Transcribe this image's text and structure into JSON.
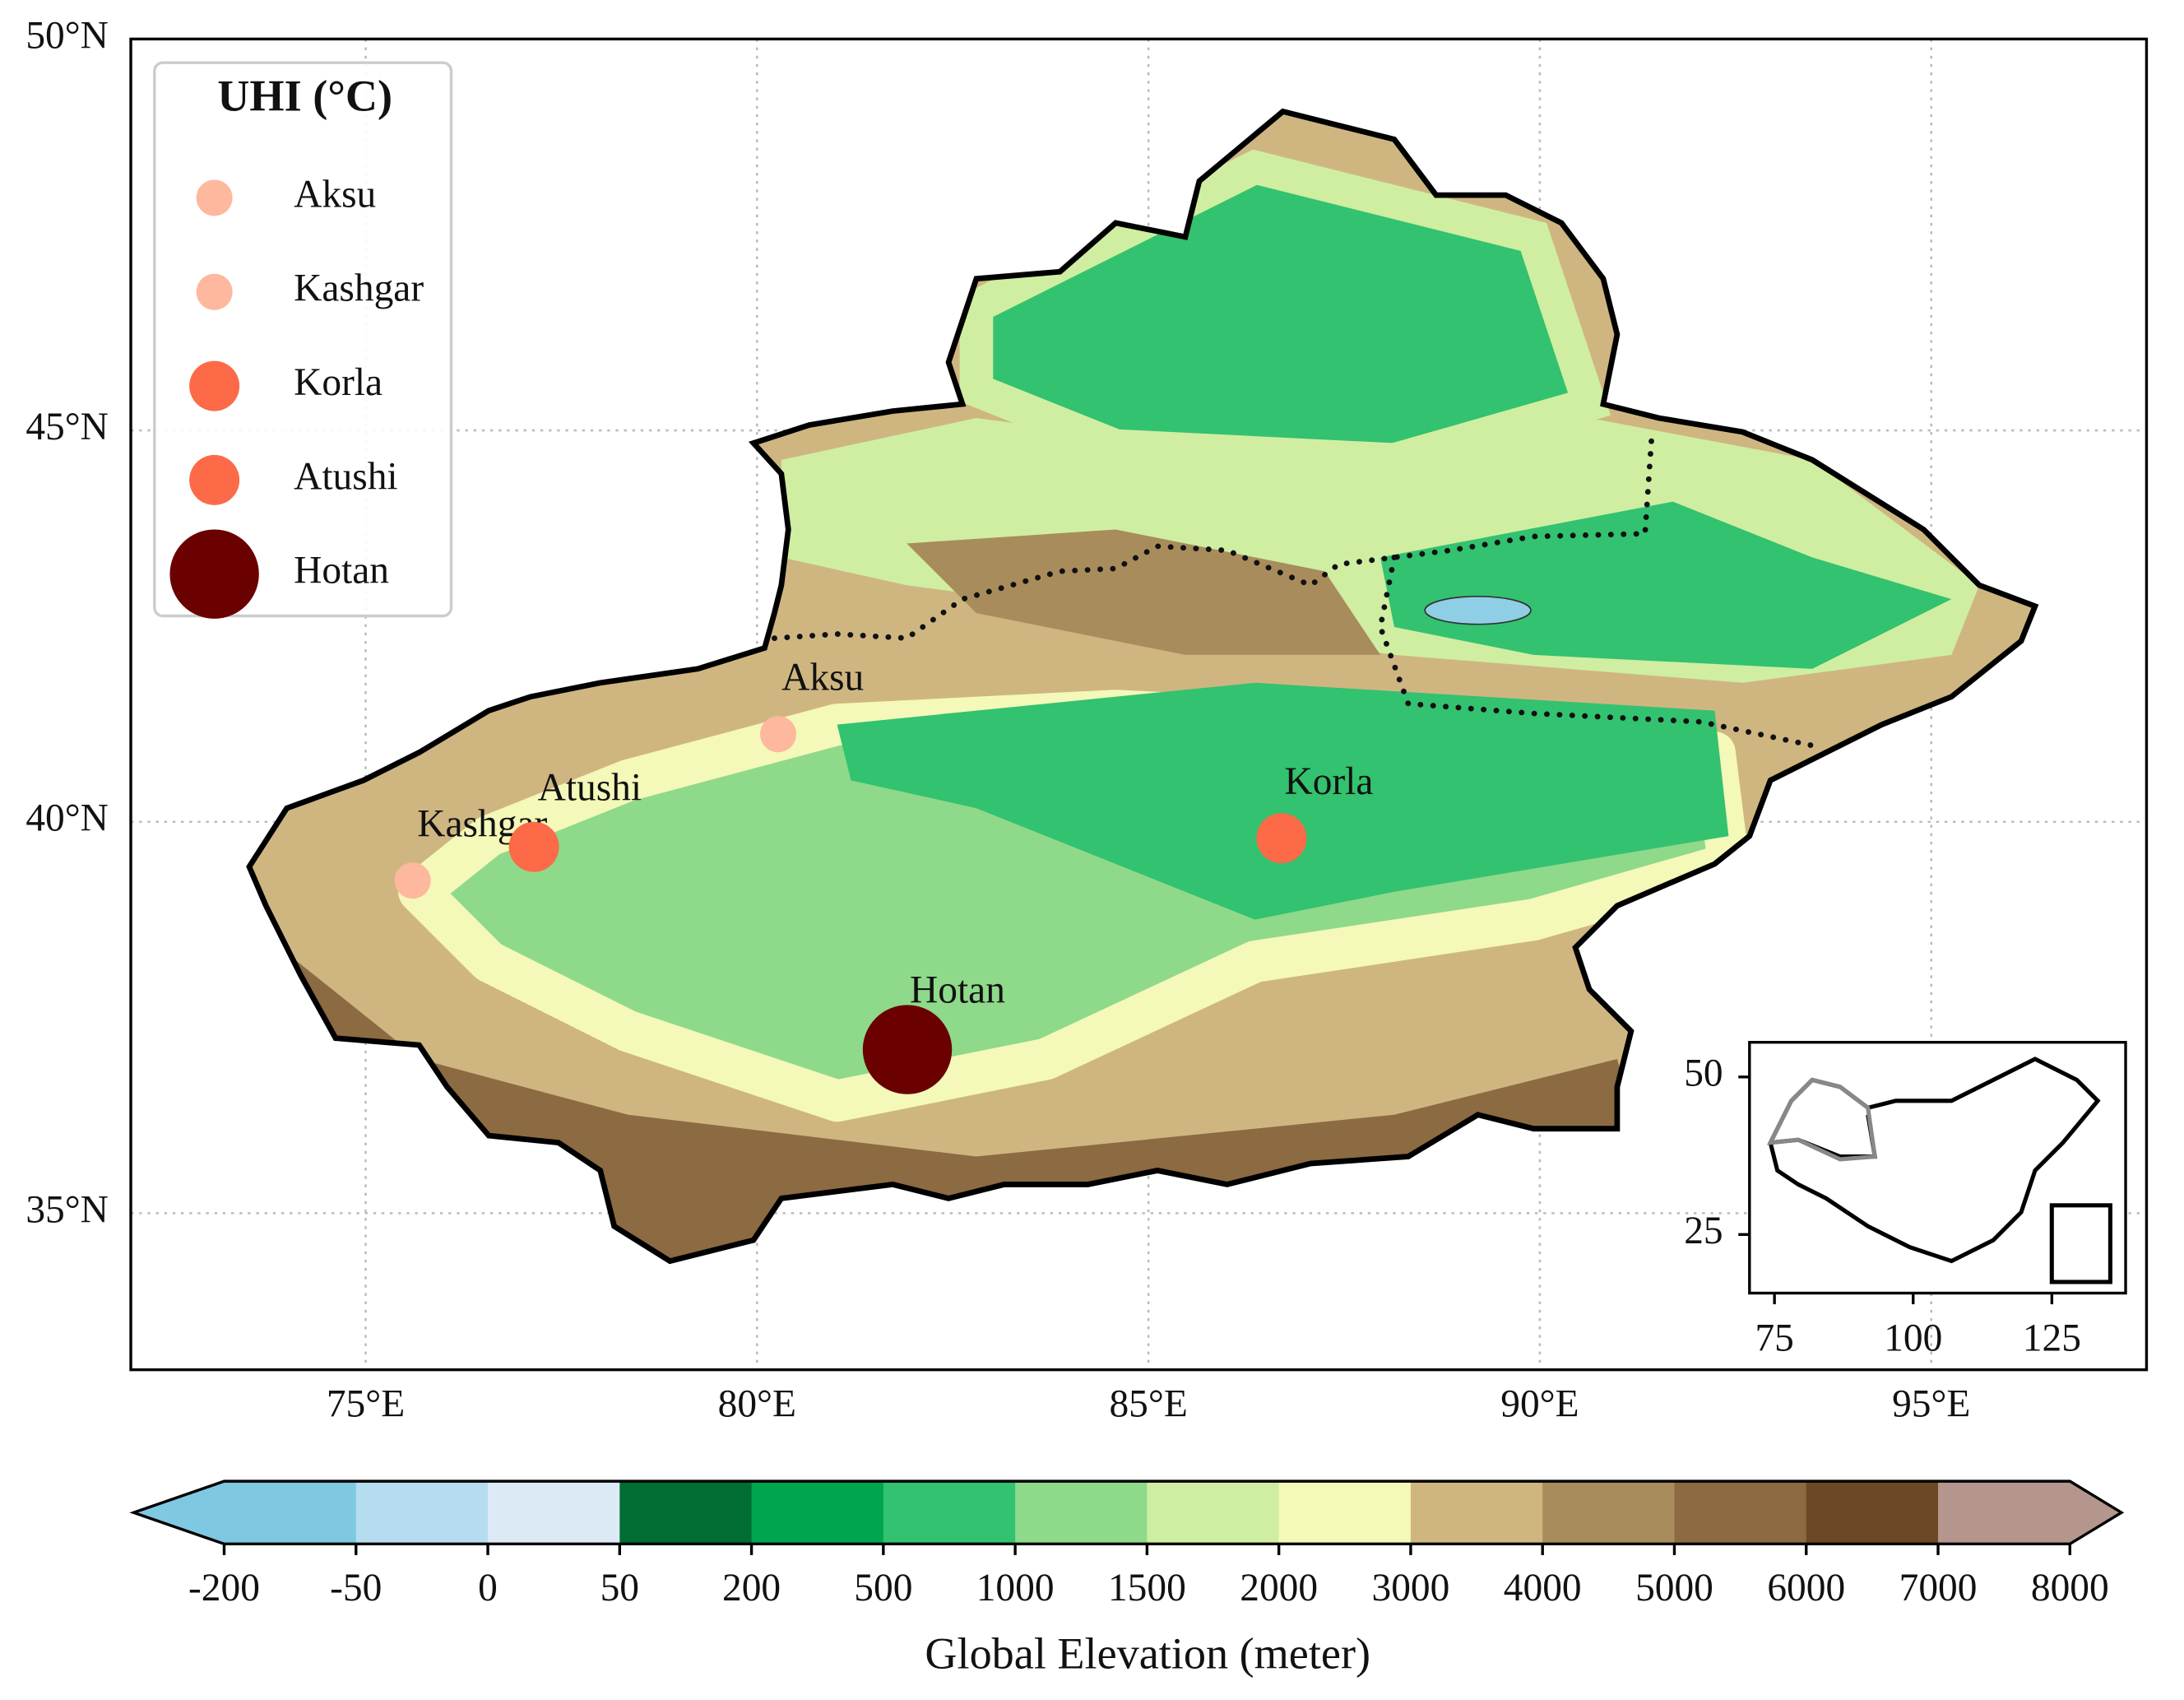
{
  "map": {
    "xlim": [
      72,
      97.75
    ],
    "ylim": [
      33,
      50
    ],
    "lon_ticks": [
      {
        "value": 75,
        "label": "75°E"
      },
      {
        "value": 80,
        "label": "80°E"
      },
      {
        "value": 85,
        "label": "85°E"
      },
      {
        "value": 90,
        "label": "90°E"
      },
      {
        "value": 95,
        "label": "95°E"
      }
    ],
    "lat_ticks": [
      {
        "value": 35,
        "label": "35°N"
      },
      {
        "value": 40,
        "label": "40°N"
      },
      {
        "value": 45,
        "label": "45°N"
      },
      {
        "value": 50,
        "label": "50°N"
      }
    ],
    "grid": true,
    "legend": {
      "title": "UHI (°C)"
    },
    "cities": [
      {
        "name": "Aksu",
        "lon": 80.27,
        "lat": 41.12,
        "color": "#fdb89d"
      },
      {
        "name": "Kashgar",
        "lon": 75.6,
        "lat": 39.25,
        "color": "#fdb89d"
      },
      {
        "name": "Korla",
        "lon": 86.7,
        "lat": 39.79,
        "color": "#fc6a48"
      },
      {
        "name": "Atushi",
        "lon": 77.15,
        "lat": 39.68,
        "color": "#fc6a48"
      },
      {
        "name": "Hotan",
        "lon": 81.92,
        "lat": 37.09,
        "color": "#6b0000"
      }
    ]
  },
  "inset": {
    "xlim": [
      70.5,
      138.3
    ],
    "ylim": [
      15.7,
      55.5
    ],
    "xticks": [
      75,
      100,
      125
    ],
    "yticks": [
      50,
      25
    ]
  },
  "colorbar": {
    "title": "Global Elevation (meter)",
    "ticks": [
      -200,
      -50,
      0,
      50,
      200,
      500,
      1000,
      1500,
      2000,
      3000,
      4000,
      5000,
      6000,
      7000,
      8000
    ],
    "colors": [
      "#7fc8e2",
      "#b6dcf0",
      "#dceaf6",
      "#006d32",
      "#00a550",
      "#33c26f",
      "#8fd98a",
      "#cfeea2",
      "#f4f8b8",
      "#cfb681",
      "#a98c5c",
      "#8c6a42",
      "#6d4826",
      "#b4968f"
    ],
    "under_color": "#7fc8e2",
    "over_color": "#b4968f"
  }
}
